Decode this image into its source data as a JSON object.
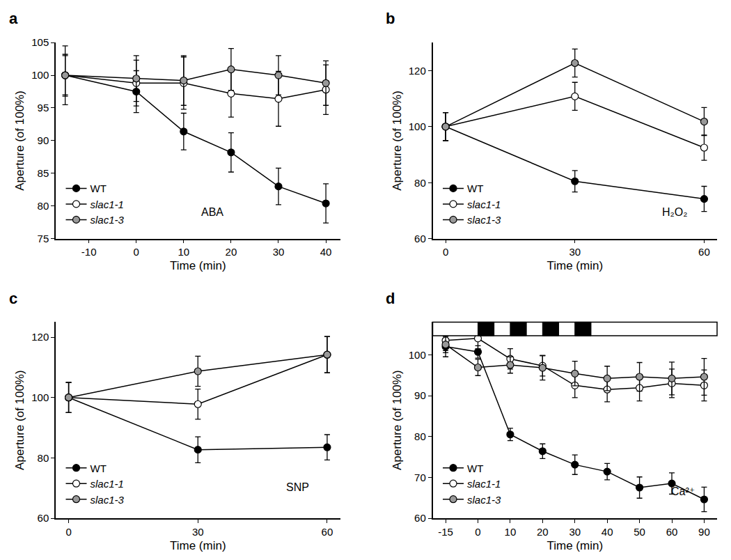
{
  "chart_data": [
    {
      "type": "line",
      "title": "a",
      "annotation": "ABA",
      "x_label": "Time (min)",
      "y_label": "Aperture (of 100%)",
      "x": [
        -15,
        0,
        10,
        20,
        30,
        40
      ],
      "xlim": [
        -17,
        43
      ],
      "xticks": [
        -10,
        0,
        10,
        20,
        30,
        40
      ],
      "ylim": [
        75,
        105
      ],
      "yticks": [
        75,
        80,
        85,
        90,
        95,
        100,
        105
      ],
      "legend": "lower left",
      "marker": "circle",
      "series": [
        {
          "name": "WT",
          "color": "#000000",
          "values": [
            100,
            97.5,
            91.4,
            88.2,
            83,
            80.4
          ],
          "errors": [
            3.2,
            3.2,
            2.8,
            3,
            2.8,
            3
          ]
        },
        {
          "name": "slac1-1",
          "color": "#ffffff",
          "values": [
            100,
            98.8,
            98.8,
            97.2,
            96.4,
            97.8
          ],
          "errors": [
            3,
            3.5,
            4,
            3.6,
            4.2,
            3.8
          ]
        },
        {
          "name": "slac1-3",
          "color": "#999999",
          "values": [
            100,
            99.5,
            99.2,
            100.9,
            100,
            98.8
          ],
          "errors": [
            4.5,
            3.5,
            3.8,
            3.2,
            3,
            3.4
          ]
        }
      ]
    },
    {
      "type": "line",
      "title": "b",
      "annotation": "H₂O₂",
      "x_label": "Time (min)",
      "y_label": "Aperture (of 100%)",
      "x": [
        0,
        30,
        60
      ],
      "xlim": [
        -3,
        63
      ],
      "xticks": [
        0,
        30,
        60
      ],
      "ylim": [
        60,
        130
      ],
      "yticks": [
        60,
        80,
        100,
        120
      ],
      "legend": "lower left",
      "marker": "circle",
      "series": [
        {
          "name": "WT",
          "color": "#000000",
          "values": [
            100,
            80.5,
            74.2
          ],
          "errors": [
            5,
            3.8,
            4.5
          ]
        },
        {
          "name": "slac1-1",
          "color": "#ffffff",
          "values": [
            100,
            110.8,
            92.5
          ],
          "errors": [
            5,
            5,
            4.5
          ]
        },
        {
          "name": "slac1-3",
          "color": "#999999",
          "values": [
            100,
            122.7,
            101.8
          ],
          "errors": [
            5,
            5,
            5
          ]
        }
      ]
    },
    {
      "type": "line",
      "title": "c",
      "annotation": "SNP",
      "x_label": "Time (min)",
      "y_label": "Aperture (of 100%)",
      "x": [
        0,
        30,
        60
      ],
      "xlim": [
        -3,
        63
      ],
      "xticks": [
        0,
        30,
        60
      ],
      "ylim": [
        60,
        125
      ],
      "yticks": [
        60,
        80,
        100,
        120
      ],
      "legend": "lower left",
      "marker": "circle",
      "series": [
        {
          "name": "WT",
          "color": "#000000",
          "values": [
            100,
            82.7,
            83.5
          ],
          "errors": [
            5,
            4.3,
            4.2
          ]
        },
        {
          "name": "slac1-1",
          "color": "#ffffff",
          "values": [
            100,
            97.8,
            114.2
          ],
          "errors": [
            5,
            5,
            6
          ]
        },
        {
          "name": "slac1-3",
          "color": "#999999",
          "values": [
            100,
            108.7,
            114.2
          ],
          "errors": [
            5,
            5,
            6
          ]
        }
      ]
    },
    {
      "type": "line",
      "title": "d",
      "annotation": "Ca²⁺",
      "x_label": "Time (min)",
      "y_label": "Aperture (of 100%)",
      "categories": [
        "-15",
        "0",
        "10",
        "20",
        "30",
        "40",
        "50",
        "60",
        "90"
      ],
      "ylim": [
        60,
        108
      ],
      "yticks": [
        60,
        70,
        80,
        90,
        100
      ],
      "pulses": [
        [
          0,
          5
        ],
        [
          10,
          15
        ],
        [
          20,
          25
        ],
        [
          30,
          35
        ]
      ],
      "legend": "lower left",
      "marker": "circle",
      "series": [
        {
          "name": "WT",
          "color": "#000000",
          "values": [
            102,
            100.7,
            80.5,
            76.4,
            73.1,
            71.4,
            67.5,
            68.5,
            64.6
          ],
          "errors": [
            2.5,
            1.5,
            1.5,
            1.8,
            2.4,
            2,
            2.6,
            2.6,
            3
          ]
        },
        {
          "name": "slac1-1",
          "color": "#ffffff",
          "values": [
            103.5,
            104,
            99,
            97.3,
            92.5,
            91.5,
            91.9,
            93,
            92.5
          ],
          "errors": [
            2.5,
            2.5,
            2.5,
            2.5,
            3,
            3,
            3.2,
            3.5,
            3.8
          ]
        },
        {
          "name": "slac1-3",
          "color": "#999999",
          "values": [
            102.5,
            96.9,
            97.5,
            96.8,
            95.4,
            94.2,
            94.6,
            94.2,
            94.6
          ],
          "errors": [
            2,
            2,
            2,
            3,
            3,
            3,
            3.5,
            4,
            4.5
          ]
        }
      ]
    }
  ]
}
